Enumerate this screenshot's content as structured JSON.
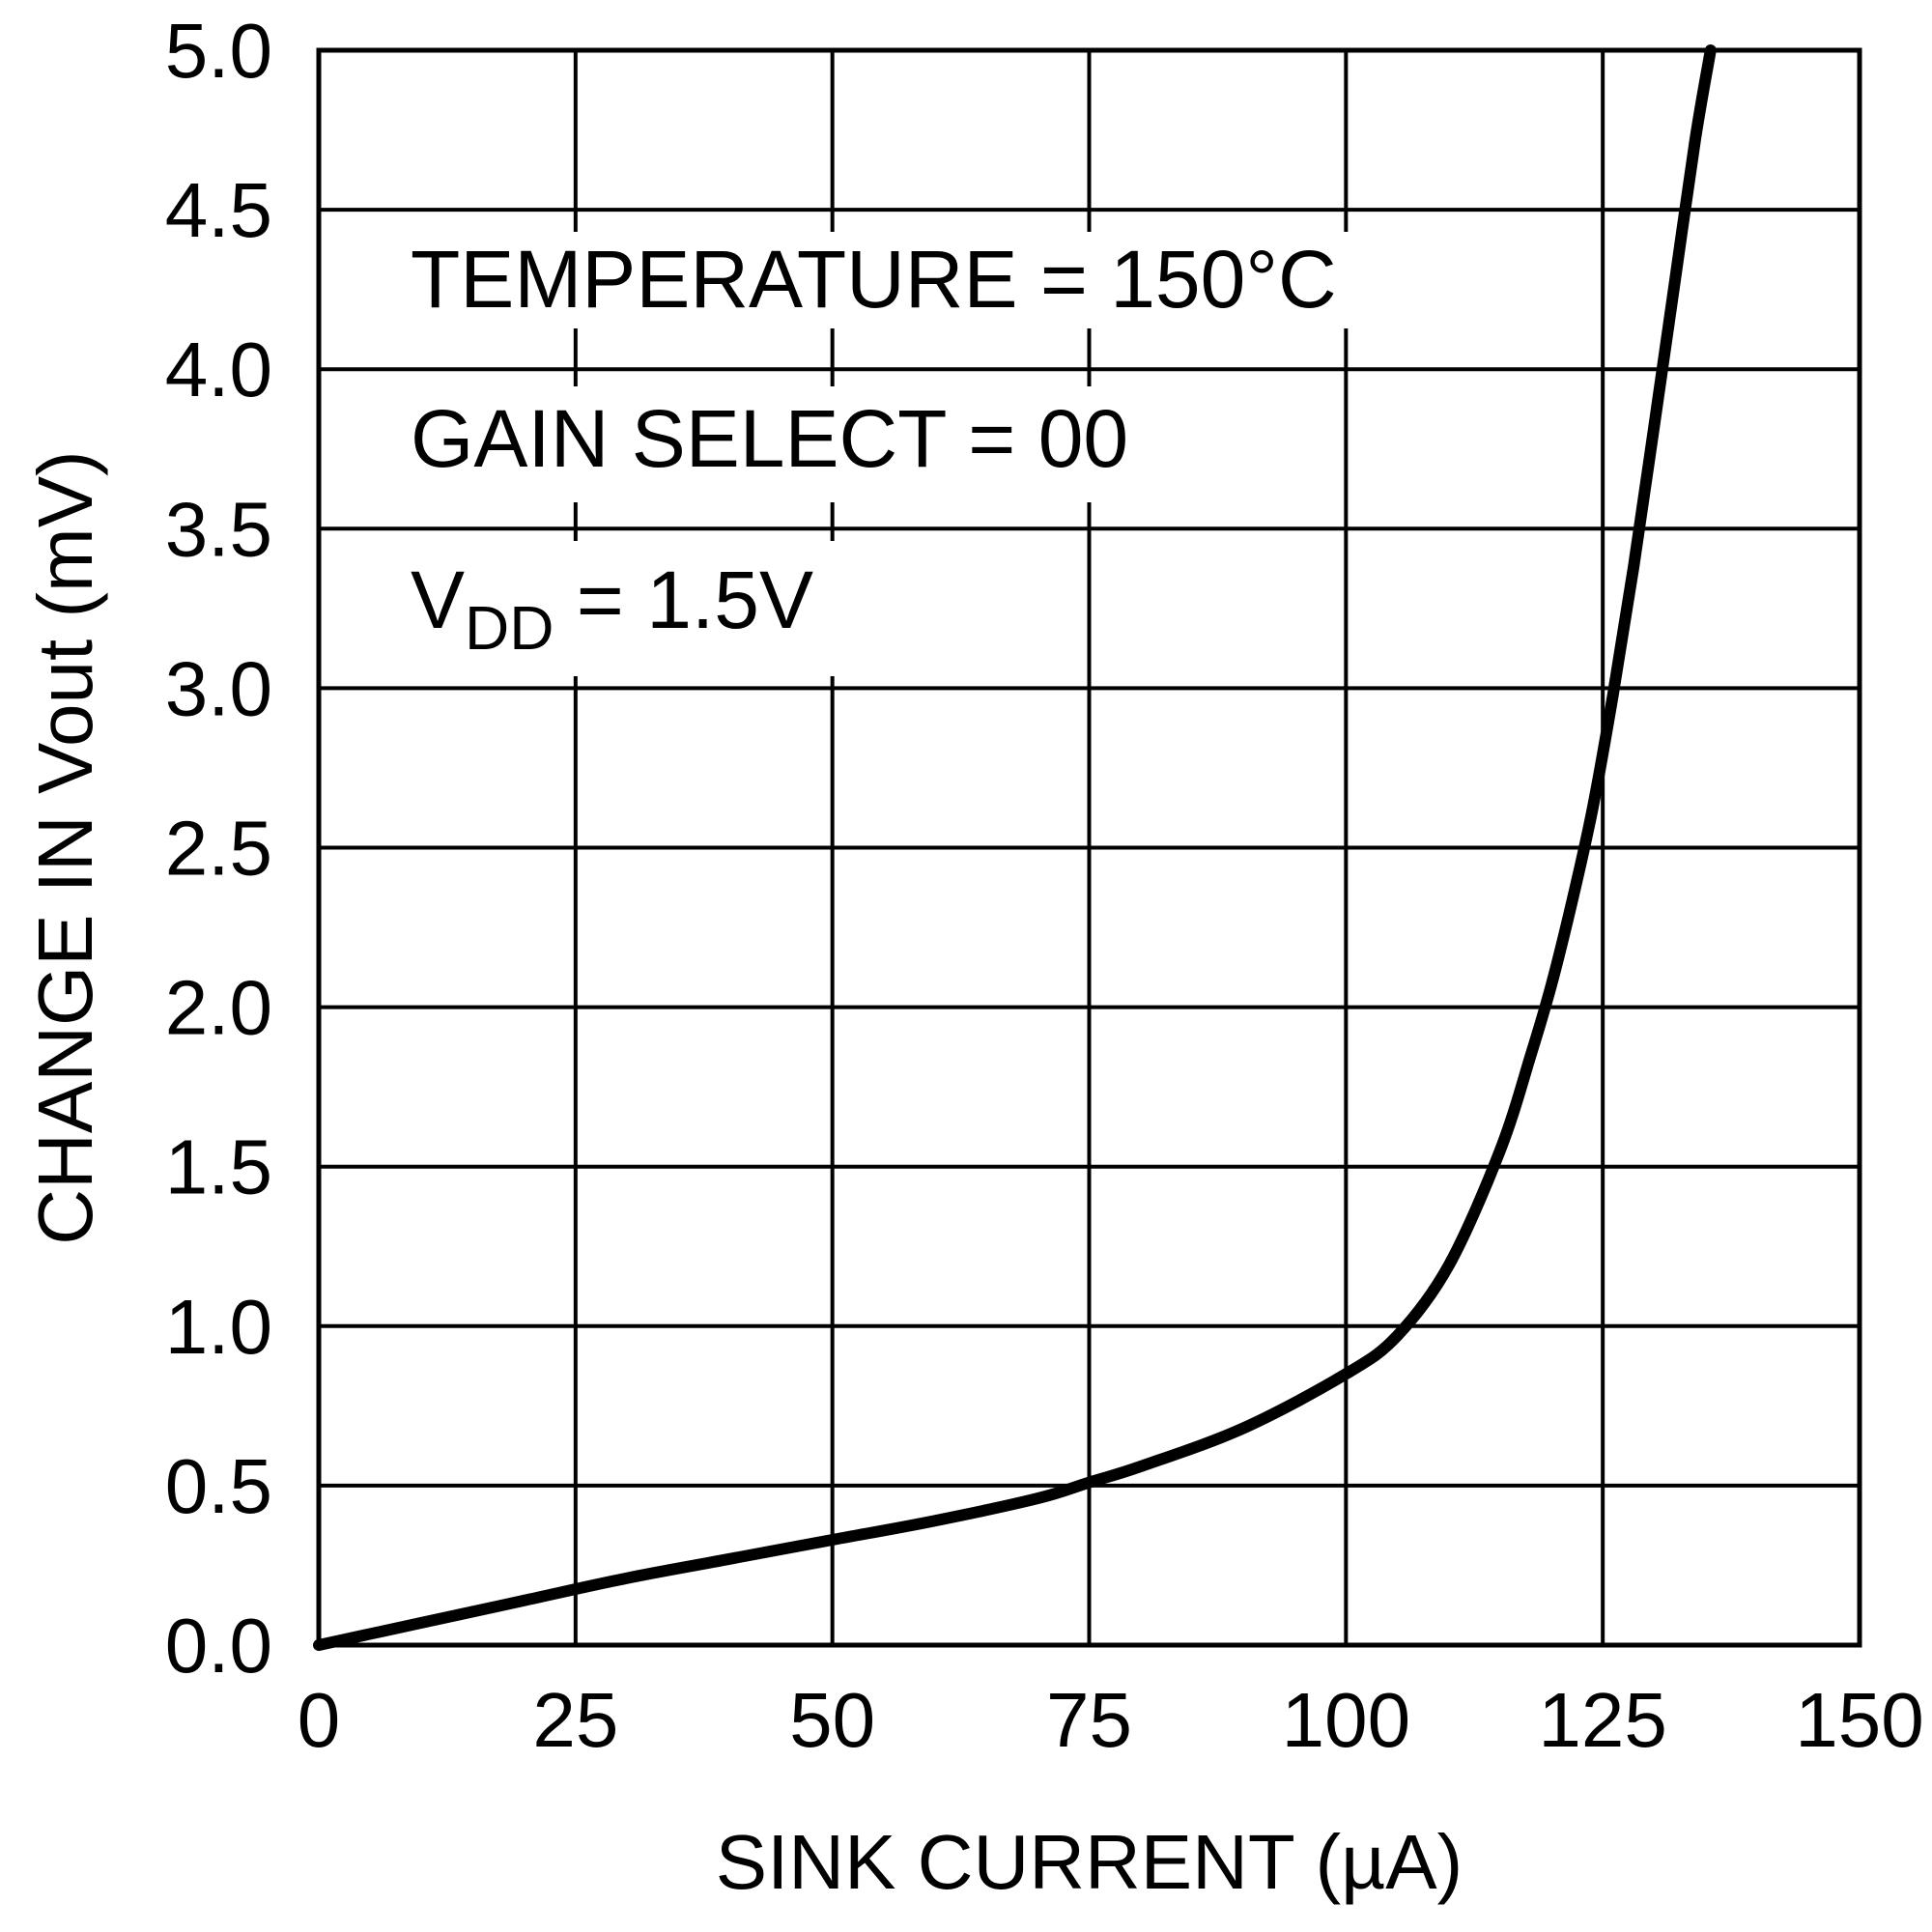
{
  "chart_data": {
    "type": "line",
    "title": "",
    "xlabel": "SINK CURRENT (µA)",
    "ylabel": "CHANGE IN Vout (mV)",
    "xlim": [
      0,
      150
    ],
    "ylim": [
      0,
      5.0
    ],
    "grid": true,
    "xticks": [
      0,
      25,
      50,
      75,
      100,
      125,
      150
    ],
    "xtick_labels": [
      "0",
      "25",
      "50",
      "75",
      "100",
      "125",
      "150"
    ],
    "yticks": [
      0,
      0.5,
      1.0,
      1.5,
      2.0,
      2.5,
      3.0,
      3.5,
      4.0,
      4.5,
      5.0
    ],
    "ytick_labels": [
      "0.0",
      "0.5",
      "1.0",
      "1.5",
      "2.0",
      "2.5",
      "3.0",
      "3.5",
      "4.0",
      "4.5",
      "5.0"
    ],
    "annotations": {
      "temperature": "TEMPERATURE = 150°C",
      "gain_select": "GAIN SELECT = 00",
      "vdd_prefix": "V",
      "vdd_subscript": "DD",
      "vdd_value": " = 1.5V"
    },
    "series": [
      {
        "name": "Change in Vout",
        "x": [
          0,
          10,
          20,
          30,
          40,
          50,
          60,
          70,
          75,
          80,
          90,
          100,
          105,
          110,
          115,
          118,
          120,
          122,
          124,
          126,
          128,
          130,
          132,
          134,
          135.5
        ],
        "y": [
          0,
          0.07,
          0.14,
          0.21,
          0.27,
          0.33,
          0.39,
          0.46,
          0.51,
          0.56,
          0.68,
          0.85,
          0.97,
          1.19,
          1.55,
          1.85,
          2.07,
          2.33,
          2.62,
          2.98,
          3.38,
          3.82,
          4.27,
          4.72,
          5.0
        ]
      }
    ],
    "colors": {
      "line": "#000000",
      "grid": "#000000",
      "background": "#ffffff"
    }
  }
}
